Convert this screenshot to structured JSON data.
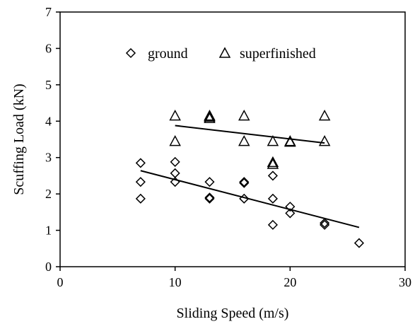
{
  "chart_data": {
    "type": "scatter",
    "xlabel": "Sliding Speed (m/s)",
    "ylabel": "Scuffing Load (kN)",
    "xlim": [
      0,
      30
    ],
    "ylim": [
      0,
      7
    ],
    "xticks": [
      "0",
      "10",
      "20",
      "30"
    ],
    "yticks": [
      "0",
      "1",
      "2",
      "3",
      "4",
      "5",
      "6",
      "7"
    ],
    "grid": false,
    "legend_position": "top",
    "series": [
      {
        "name": "ground",
        "marker": "diamond",
        "points": [
          [
            7,
            2.85
          ],
          [
            7,
            2.33
          ],
          [
            7,
            1.87
          ],
          [
            10,
            2.88
          ],
          [
            10,
            2.57
          ],
          [
            10,
            2.33
          ],
          [
            13,
            2.33
          ],
          [
            13,
            1.9
          ],
          [
            13,
            1.87
          ],
          [
            16,
            2.33
          ],
          [
            16,
            2.3
          ],
          [
            16,
            1.87
          ],
          [
            18.5,
            2.5
          ],
          [
            18.5,
            1.87
          ],
          [
            18.5,
            1.15
          ],
          [
            20,
            1.65
          ],
          [
            20,
            1.47
          ],
          [
            23,
            1.2
          ],
          [
            23,
            1.15
          ],
          [
            26,
            0.65
          ]
        ],
        "trendline": {
          "x": [
            7,
            26
          ],
          "y": [
            2.64,
            1.08
          ]
        }
      },
      {
        "name": "superfinished",
        "marker": "triangle",
        "points": [
          [
            10,
            4.15
          ],
          [
            10,
            3.45
          ],
          [
            13,
            4.15
          ],
          [
            13,
            4.12
          ],
          [
            13,
            4.08
          ],
          [
            16,
            4.15
          ],
          [
            16,
            3.45
          ],
          [
            18.5,
            3.45
          ],
          [
            18.5,
            2.87
          ],
          [
            18.5,
            2.82
          ],
          [
            20,
            3.45
          ],
          [
            20,
            3.43
          ],
          [
            23,
            4.15
          ],
          [
            23,
            3.45
          ]
        ],
        "trendline": {
          "x": [
            10,
            23
          ],
          "y": [
            3.88,
            3.4
          ]
        }
      }
    ]
  }
}
